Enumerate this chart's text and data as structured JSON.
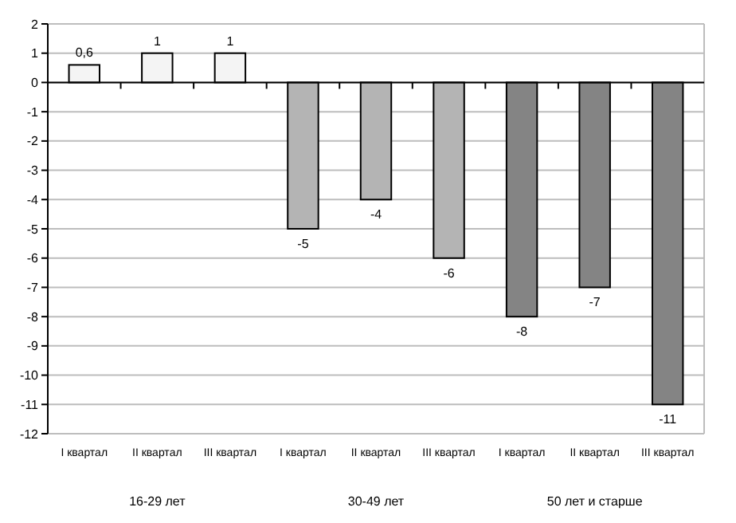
{
  "chart_data": {
    "type": "bar",
    "categories": [
      "I квартал",
      "II квартал",
      "III квартал",
      "I квартал",
      "II квартал",
      "III квартал",
      "I квартал",
      "II квартал",
      "III квартал"
    ],
    "values": [
      0.6,
      1,
      1,
      -5,
      -4,
      -6,
      -8,
      -7,
      -11
    ],
    "colors": [
      "#f4f4f4",
      "#f4f4f4",
      "#f4f4f4",
      "#b4b4b4",
      "#b4b4b4",
      "#b4b4b4",
      "#848484",
      "#848484",
      "#848484"
    ],
    "value_labels": [
      "0,6",
      "1",
      "1",
      "-5",
      "-4",
      "-6",
      "-8",
      "-7",
      "-11"
    ],
    "ylim": [
      -12,
      2
    ],
    "yticks": [
      -12,
      -11,
      -10,
      -9,
      -8,
      -7,
      -6,
      -5,
      -4,
      -3,
      -2,
      -1,
      0,
      1,
      2
    ],
    "grid": "y",
    "annotations": [
      "16-29 лет",
      "30-49 лет",
      "50 лет и старше"
    ]
  }
}
